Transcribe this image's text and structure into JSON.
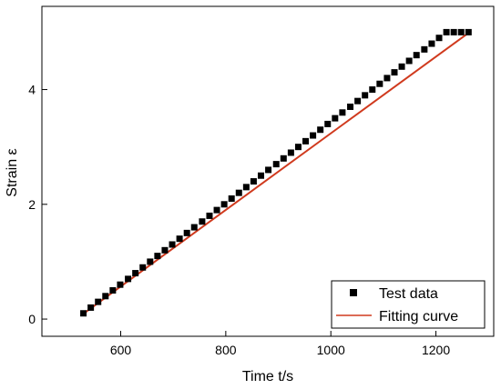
{
  "chart_data": {
    "type": "scatter",
    "xlabel": "Time t/s",
    "ylabel": "Strain ε",
    "xlim": [
      450,
      1310
    ],
    "ylim": [
      -0.3,
      5.45
    ],
    "x_ticks": [
      600,
      800,
      1000,
      1200
    ],
    "y_ticks": [
      0,
      2,
      4
    ],
    "grid": false,
    "legend_position": "bottom-right",
    "series": [
      {
        "name": "Test data",
        "kind": "markers",
        "marker": "square",
        "color": "#000000",
        "x": [
          529,
          543,
          557,
          571,
          585,
          599,
          614,
          628,
          642,
          656,
          670,
          684,
          698,
          712,
          726,
          740,
          755,
          769,
          783,
          797,
          811,
          825,
          839,
          853,
          867,
          881,
          896,
          910,
          924,
          938,
          952,
          966,
          980,
          994,
          1008,
          1022,
          1037,
          1051,
          1065,
          1079,
          1093,
          1107,
          1121,
          1135,
          1149,
          1163,
          1178,
          1192,
          1206,
          1220,
          1234,
          1248,
          1262
        ],
        "y": [
          0.1,
          0.2,
          0.3,
          0.4,
          0.5,
          0.6,
          0.7,
          0.8,
          0.9,
          1.0,
          1.1,
          1.2,
          1.3,
          1.4,
          1.5,
          1.6,
          1.7,
          1.8,
          1.9,
          2.0,
          2.1,
          2.2,
          2.3,
          2.4,
          2.5,
          2.6,
          2.7,
          2.8,
          2.9,
          3.0,
          3.1,
          3.2,
          3.3,
          3.4,
          3.5,
          3.6,
          3.7,
          3.8,
          3.9,
          4.0,
          4.1,
          4.2,
          4.3,
          4.4,
          4.5,
          4.6,
          4.7,
          4.8,
          4.9,
          5.0,
          5.0,
          5.0,
          5.0
        ]
      },
      {
        "name": "Fitting curve",
        "kind": "line",
        "color": "#d03a1e",
        "x": [
          527,
          1267
        ],
        "y": [
          0.08,
          5.02
        ]
      }
    ]
  }
}
